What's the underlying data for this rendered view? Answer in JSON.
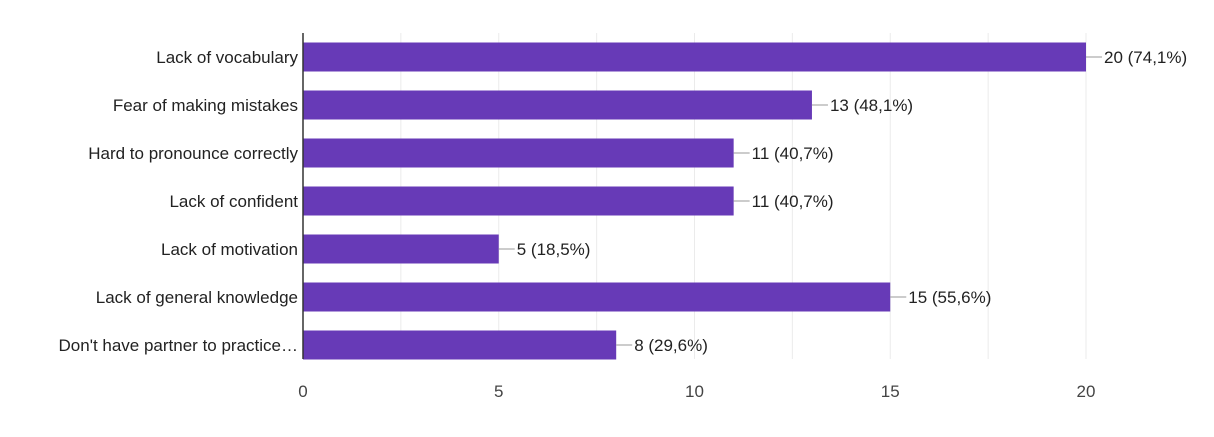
{
  "chart_data": {
    "type": "bar",
    "orientation": "horizontal",
    "categories": [
      "Lack of vocabulary",
      "Fear of making mistakes",
      "Hard to pronounce correctly",
      "Lack of confident",
      "Lack of motivation",
      "Lack of general knowledge",
      "Don't have partner to practice…"
    ],
    "values": [
      20,
      13,
      11,
      11,
      5,
      15,
      8
    ],
    "data_labels": [
      "20 (74,1%)",
      "13 (48,1%)",
      "11 (40,7%)",
      "11 (40,7%)",
      "5 (18,5%)",
      "15 (55,6%)",
      "8 (29,6%)"
    ],
    "xlim": [
      0,
      20
    ],
    "xticks": [
      0,
      5,
      10,
      15,
      20
    ],
    "grid": true,
    "legend": "none",
    "title": "",
    "xlabel": "",
    "ylabel": "",
    "bar_color": "#673ab7"
  }
}
